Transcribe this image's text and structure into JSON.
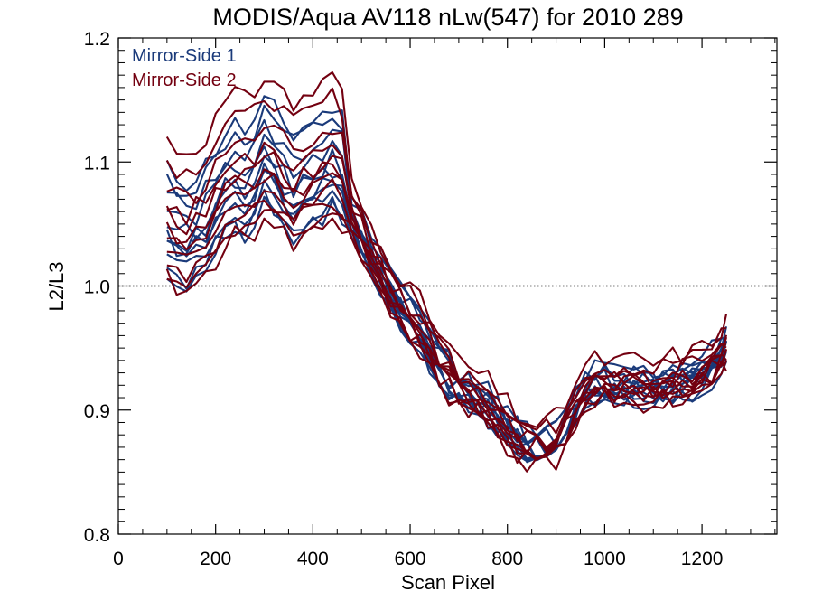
{
  "chart_data": {
    "type": "line",
    "title": "MODIS/Aqua AV118 nLw(547) for 2010 289",
    "xlabel": "Scan Pixel",
    "ylabel": "L2/L3",
    "xlim": [
      0,
      1354
    ],
    "ylim": [
      0.8,
      1.2
    ],
    "x_ticks": [
      0,
      200,
      400,
      600,
      800,
      1000,
      1200
    ],
    "y_ticks": [
      0.8,
      0.9,
      1.0,
      1.1,
      1.2
    ],
    "x_tick_labels": [
      "0",
      "200",
      "400",
      "600",
      "800",
      "1000",
      "1200"
    ],
    "y_tick_labels": [
      "0.8",
      "0.9",
      "1.0",
      "1.1",
      "1.2"
    ],
    "reference_line": {
      "y": 1.0,
      "style": "dotted"
    },
    "legend_placement": "top-left",
    "legend": [
      {
        "label": "Mirror-Side 1",
        "color": "#1a3a7a"
      },
      {
        "label": "Mirror-Side 2",
        "color": "#730010"
      }
    ],
    "x": [
      100,
      120,
      140,
      160,
      180,
      200,
      220,
      240,
      260,
      280,
      300,
      320,
      340,
      360,
      380,
      400,
      420,
      440,
      460,
      480,
      500,
      520,
      540,
      560,
      580,
      600,
      620,
      640,
      660,
      680,
      700,
      720,
      740,
      760,
      780,
      800,
      820,
      840,
      860,
      880,
      900,
      920,
      940,
      960,
      980,
      1000,
      1020,
      1040,
      1060,
      1080,
      1100,
      1120,
      1140,
      1160,
      1180,
      1200,
      1220,
      1240,
      1250
    ],
    "base_profile": [
      1.03,
      1.024,
      1.02,
      1.025,
      1.034,
      1.046,
      1.06,
      1.066,
      1.061,
      1.068,
      1.083,
      1.078,
      1.067,
      1.057,
      1.065,
      1.069,
      1.075,
      1.08,
      1.072,
      1.05,
      1.034,
      1.018,
      1.004,
      0.99,
      0.978,
      0.967,
      0.957,
      0.945,
      0.93,
      0.92,
      0.912,
      0.908,
      0.903,
      0.897,
      0.889,
      0.879,
      0.87,
      0.865,
      0.862,
      0.863,
      0.867,
      0.88,
      0.896,
      0.908,
      0.914,
      0.914,
      0.912,
      0.913,
      0.914,
      0.912,
      0.911,
      0.914,
      0.917,
      0.918,
      0.92,
      0.924,
      0.93,
      0.94,
      0.945
    ],
    "series": [
      {
        "group": "Mirror-Side 1",
        "profile_offset": 0.064,
        "seed": 11
      },
      {
        "group": "Mirror-Side 1",
        "profile_offset": 0.056,
        "seed": 12
      },
      {
        "group": "Mirror-Side 1",
        "profile_offset": 0.044,
        "seed": 13
      },
      {
        "group": "Mirror-Side 1",
        "profile_offset": 0.032,
        "seed": 14
      },
      {
        "group": "Mirror-Side 1",
        "profile_offset": 0.022,
        "seed": 15
      },
      {
        "group": "Mirror-Side 1",
        "profile_offset": 0.014,
        "seed": 16
      },
      {
        "group": "Mirror-Side 1",
        "profile_offset": 0.008,
        "seed": 17
      },
      {
        "group": "Mirror-Side 1",
        "profile_offset": 0.002,
        "seed": 18
      },
      {
        "group": "Mirror-Side 1",
        "profile_offset": -0.006,
        "seed": 19
      },
      {
        "group": "Mirror-Side 1",
        "profile_offset": -0.014,
        "seed": 20
      },
      {
        "group": "Mirror-Side 1",
        "profile_offset": -0.02,
        "seed": 21
      },
      {
        "group": "Mirror-Side 2",
        "profile_offset": 0.088,
        "seed": 31
      },
      {
        "group": "Mirror-Side 2",
        "profile_offset": 0.072,
        "seed": 32
      },
      {
        "group": "Mirror-Side 2",
        "profile_offset": 0.05,
        "seed": 33
      },
      {
        "group": "Mirror-Side 2",
        "profile_offset": 0.038,
        "seed": 34
      },
      {
        "group": "Mirror-Side 2",
        "profile_offset": 0.026,
        "seed": 35
      },
      {
        "group": "Mirror-Side 2",
        "profile_offset": 0.016,
        "seed": 36
      },
      {
        "group": "Mirror-Side 2",
        "profile_offset": 0.006,
        "seed": 37
      },
      {
        "group": "Mirror-Side 2",
        "profile_offset": -0.002,
        "seed": 38
      },
      {
        "group": "Mirror-Side 2",
        "profile_offset": -0.01,
        "seed": 39
      },
      {
        "group": "Mirror-Side 2",
        "profile_offset": -0.018,
        "seed": 40
      },
      {
        "group": "Mirror-Side 2",
        "profile_offset": -0.025,
        "seed": 41
      }
    ]
  }
}
